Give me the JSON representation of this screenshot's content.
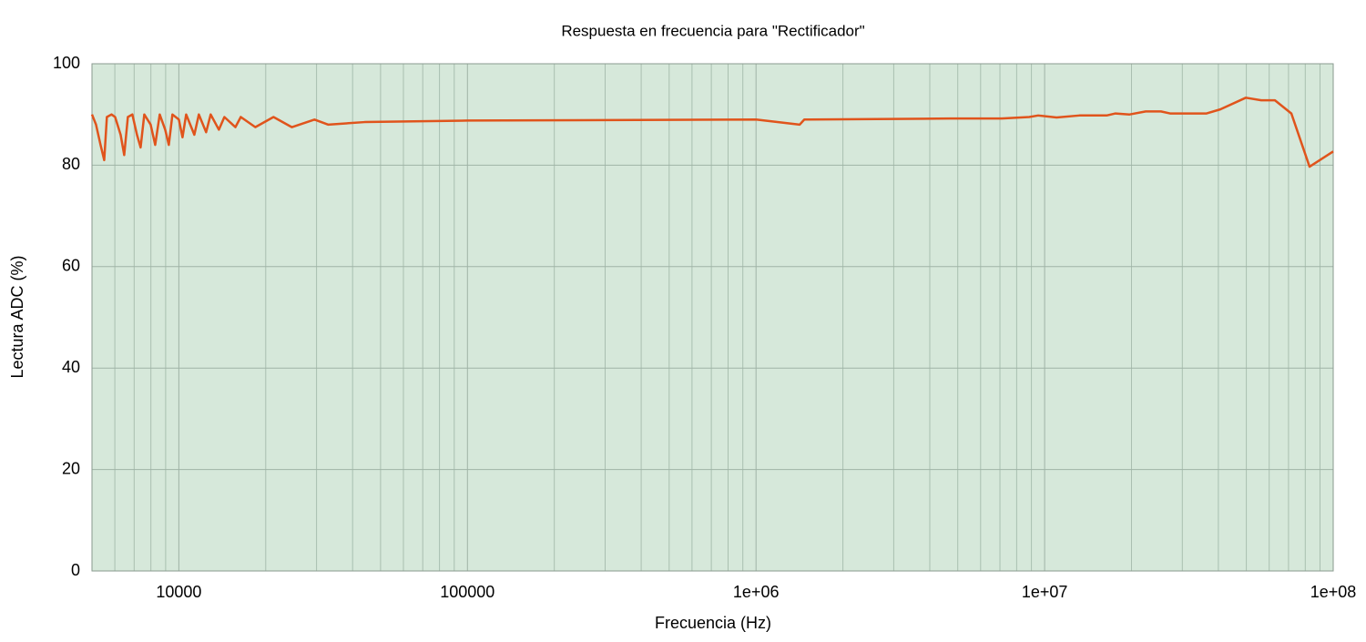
{
  "chart_data": {
    "type": "line",
    "title": "Respuesta en frecuencia para \"Rectificador\"",
    "xlabel": "Frecuencia (Hz)",
    "ylabel": "Lectura ADC (%)",
    "xscale": "log",
    "xlim": [
      5000,
      100000000
    ],
    "ylim": [
      0,
      100
    ],
    "xticks": [
      10000,
      100000,
      {
        "value": 1000000,
        "label": "1e+06"
      },
      {
        "value": 10000000,
        "label": "1e+07"
      },
      {
        "value": 100000000,
        "label": "1e+08"
      }
    ],
    "xminor_ticks": [
      5000,
      6000,
      7000,
      8000,
      9000,
      20000,
      30000,
      40000,
      50000,
      60000,
      70000,
      80000,
      90000,
      200000,
      300000,
      400000,
      500000,
      600000,
      700000,
      800000,
      900000,
      2000000,
      3000000,
      4000000,
      5000000,
      6000000,
      7000000,
      8000000,
      9000000,
      20000000,
      30000000,
      40000000,
      50000000,
      60000000,
      70000000,
      80000000,
      90000000
    ],
    "yticks": [
      0,
      20,
      40,
      60,
      80,
      100
    ],
    "grid": true,
    "color": "#e0541c",
    "background": "#d6e8da",
    "x": [
      5000,
      5164,
      5354,
      5513,
      5631,
      5843,
      6014,
      6284,
      6466,
      6658,
      6900,
      7160,
      7370,
      7590,
      7985,
      8280,
      8585,
      8968,
      9230,
      9500,
      10000,
      10295,
      10600,
      11315,
      11730,
      12430,
      12890,
      13765,
      14380,
      15700,
      16390,
      18410,
      21280,
      24620,
      29510,
      32890,
      44020,
      100000,
      1000000,
      1417000,
      1470000,
      4700000,
      7100000,
      8840000,
      9500000,
      11000000,
      13200000,
      16400000,
      17600000,
      19700000,
      22400000,
      25300000,
      27200000,
      36400000,
      40600000,
      49800000,
      56300000,
      62800000,
      71600000,
      82800000,
      100000000
    ],
    "values": [
      90,
      88,
      84,
      81,
      89.5,
      90,
      89.5,
      86,
      82,
      89.5,
      90,
      86,
      83.5,
      90,
      88,
      84,
      90,
      87,
      84,
      90,
      89,
      85.5,
      90,
      86,
      90,
      86.5,
      90,
      87,
      89.5,
      87.5,
      89.5,
      87.5,
      89.5,
      87.5,
      89,
      88,
      88.5,
      88.8,
      89,
      88,
      89,
      89.2,
      89.2,
      89.5,
      89.8,
      89.4,
      89.8,
      89.8,
      90.2,
      90,
      90.6,
      90.6,
      90.2,
      90.2,
      91,
      93.3,
      92.8,
      92.8,
      90.2,
      79.7,
      82.7
    ]
  }
}
